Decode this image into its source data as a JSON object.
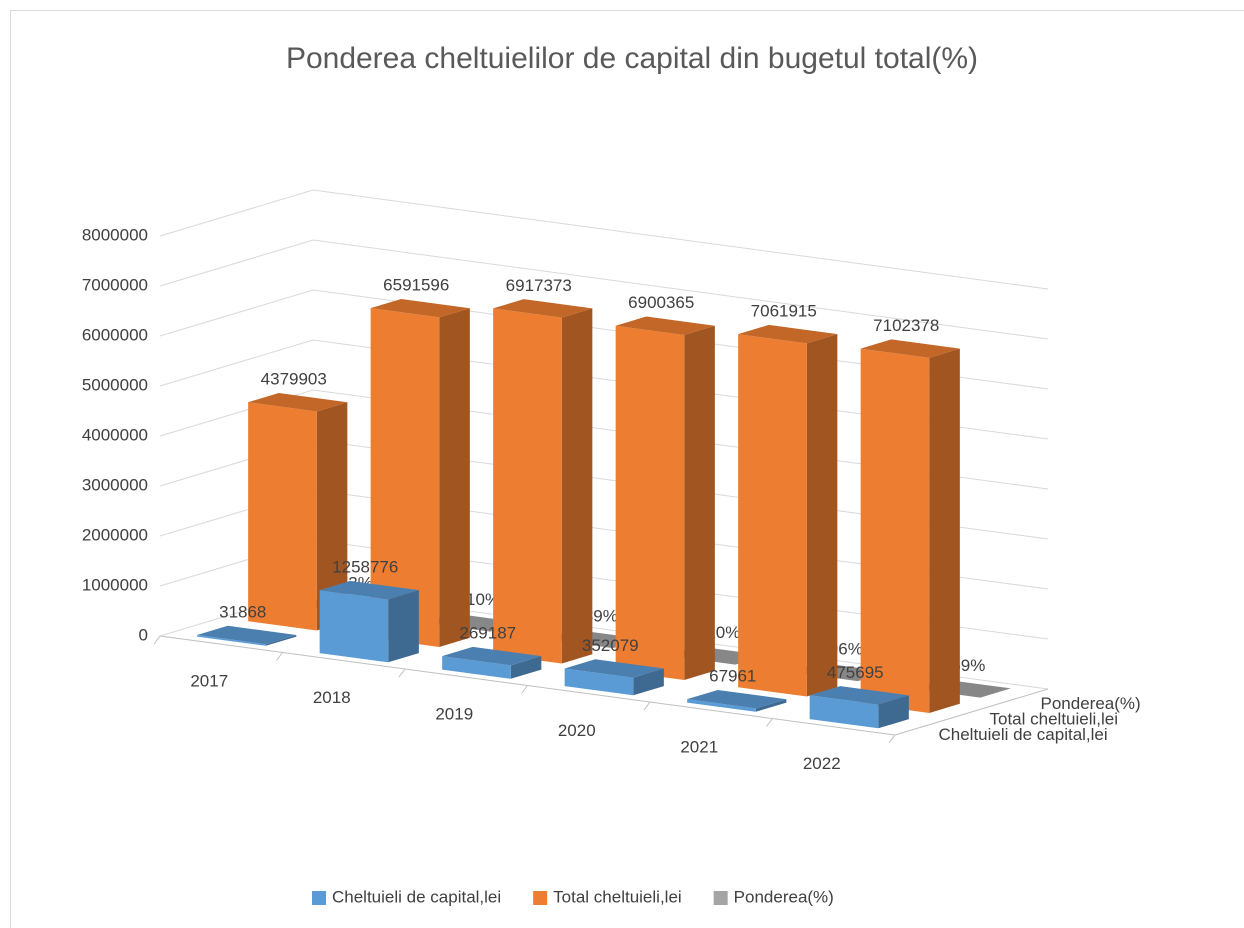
{
  "chart_data": {
    "type": "bar3d",
    "title": "Ponderea cheltuielilor de capital din bugetul total(%)",
    "categories": [
      "2017",
      "2018",
      "2019",
      "2020",
      "2021",
      "2022"
    ],
    "series": [
      {
        "name": "Cheltuieli de capital,lei",
        "color": "#5b9bd5",
        "values": [
          31868,
          1258776,
          269187,
          352079,
          67961,
          475695
        ]
      },
      {
        "name": "Total cheltuieli,lei",
        "color": "#ed7d31",
        "values": [
          4379903,
          6591596,
          6917373,
          6900365,
          7061915,
          7102378
        ]
      },
      {
        "name": "Ponderea(%)",
        "color": "#a5a5a5",
        "values": [
          0.73,
          19.1,
          3.89,
          5.1,
          0.96,
          6.69
        ],
        "value_labels": [
          "0.73%",
          "19.10%",
          "3.89%",
          "5.10%",
          "0.96%",
          "6.69%"
        ]
      }
    ],
    "ylim": [
      0,
      8000000
    ],
    "yticks": [
      0,
      1000000,
      2000000,
      3000000,
      4000000,
      5000000,
      6000000,
      7000000,
      8000000
    ],
    "grid": true,
    "legend": "bottom"
  }
}
